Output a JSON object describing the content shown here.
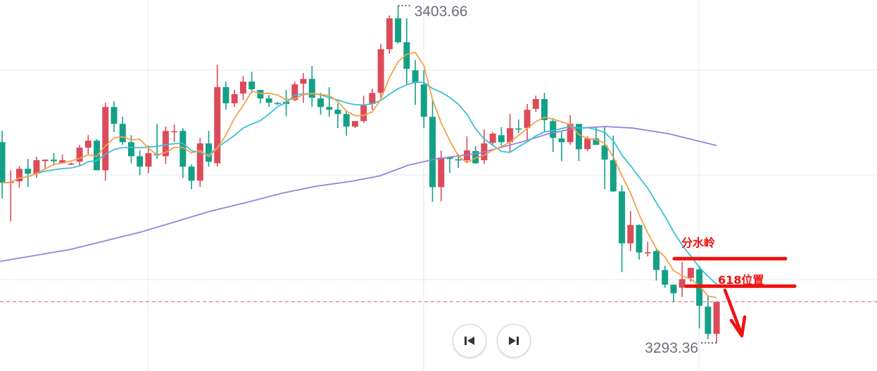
{
  "chart_data": {
    "type": "candlestick",
    "colors": {
      "up": "#dc4b5a",
      "down": "#14a087",
      "ma_short": "#f5a04a",
      "ma_mid": "#3bbfd6",
      "ma_long": "#9a80dc",
      "annotation": "#ee1111",
      "last_price_line": "#d9636e"
    },
    "ma_periods": [
      5,
      10
    ],
    "high_label": "3403.66",
    "low_label": "3293.36",
    "ohlc": [
      [
        3359.0,
        3362.7,
        3340.6,
        3345.7
      ],
      [
        3345.9,
        3349.8,
        3333.1,
        3346.0
      ],
      [
        3346.2,
        3351.2,
        3344.1,
        3350.3
      ],
      [
        3350.3,
        3353.5,
        3344.3,
        3348.7
      ],
      [
        3348.7,
        3354.2,
        3347.3,
        3353.1
      ],
      [
        3352.8,
        3353.3,
        3350.3,
        3353.3
      ],
      [
        3353.3,
        3355.4,
        3351.5,
        3352.8
      ],
      [
        3352.1,
        3354.9,
        3351.9,
        3353.1
      ],
      [
        3351.9,
        3352.4,
        3351.5,
        3352.0
      ],
      [
        3352.6,
        3358.1,
        3351.5,
        3357.2
      ],
      [
        3357.2,
        3361.3,
        3355.1,
        3359.5
      ],
      [
        3359.5,
        3360.0,
        3349.8,
        3349.8
      ],
      [
        3349.8,
        3371.9,
        3346.4,
        3370.5
      ],
      [
        3370.5,
        3372.4,
        3362.3,
        3365.0
      ],
      [
        3365.0,
        3367.3,
        3358.1,
        3359.0
      ],
      [
        3359.0,
        3361.3,
        3352.1,
        3354.4
      ],
      [
        3354.4,
        3356.3,
        3348.2,
        3351.0
      ],
      [
        3351.0,
        3357.9,
        3348.9,
        3355.4
      ],
      [
        3355.1,
        3365.0,
        3353.5,
        3354.7
      ],
      [
        3354.4,
        3364.1,
        3351.9,
        3362.7
      ],
      [
        3362.4,
        3364.8,
        3359.0,
        3362.6
      ],
      [
        3362.7,
        3363.6,
        3347.3,
        3351.0
      ],
      [
        3351.0,
        3351.7,
        3343.6,
        3346.4
      ],
      [
        3346.4,
        3360.4,
        3344.3,
        3358.6
      ],
      [
        3358.6,
        3362.7,
        3351.0,
        3352.6
      ],
      [
        3352.1,
        3384.3,
        3351.0,
        3377.0
      ],
      [
        3377.0,
        3378.8,
        3369.6,
        3371.7
      ],
      [
        3371.7,
        3376.1,
        3370.5,
        3374.7
      ],
      [
        3374.9,
        3380.7,
        3372.8,
        3378.8
      ],
      [
        3378.8,
        3382.0,
        3375.1,
        3376.3
      ],
      [
        3376.1,
        3376.1,
        3371.7,
        3373.3
      ],
      [
        3373.3,
        3374.4,
        3370.5,
        3371.9
      ],
      [
        3371.8,
        3372.2,
        3371.2,
        3371.7
      ],
      [
        3372.2,
        3376.1,
        3367.5,
        3371.5
      ],
      [
        3372.8,
        3378.8,
        3372.4,
        3377.9
      ],
      [
        3378.1,
        3381.6,
        3371.9,
        3379.7
      ],
      [
        3379.7,
        3383.9,
        3370.5,
        3373.5
      ],
      [
        3373.3,
        3375.1,
        3368.0,
        3370.5
      ],
      [
        3370.5,
        3377.0,
        3367.3,
        3369.6
      ],
      [
        3369.6,
        3371.7,
        3363.6,
        3368.2
      ],
      [
        3368.2,
        3369.4,
        3361.1,
        3364.1
      ],
      [
        3364.1,
        3365.9,
        3363.6,
        3365.9
      ],
      [
        3365.9,
        3374.2,
        3365.3,
        3371.0
      ],
      [
        3371.5,
        3376.5,
        3369.6,
        3375.1
      ],
      [
        3375.1,
        3391.2,
        3373.3,
        3389.4
      ],
      [
        3389.4,
        3400.4,
        3388.0,
        3399.5
      ],
      [
        3399.5,
        3403.66,
        3391.2,
        3391.7
      ],
      [
        3391.7,
        3399.5,
        3377.9,
        3383.0
      ],
      [
        3382.5,
        3385.9,
        3371.2,
        3378.4
      ],
      [
        3377.9,
        3382.5,
        3363.6,
        3367.3
      ],
      [
        3367.3,
        3372.8,
        3339.5,
        3344.3
      ],
      [
        3344.3,
        3356.3,
        3339.7,
        3354.0
      ],
      [
        3354.0,
        3354.4,
        3348.9,
        3353.5
      ],
      [
        3353.4,
        3355.1,
        3350.5,
        3353.2
      ],
      [
        3353.1,
        3360.9,
        3352.6,
        3356.3
      ],
      [
        3356.1,
        3357.7,
        3351.9,
        3352.1
      ],
      [
        3353.1,
        3363.2,
        3351.9,
        3358.6
      ],
      [
        3358.8,
        3362.3,
        3357.7,
        3361.8
      ],
      [
        3361.3,
        3363.9,
        3357.9,
        3359.0
      ],
      [
        3359.0,
        3368.2,
        3355.6,
        3363.6
      ],
      [
        3363.5,
        3366.4,
        3362.0,
        3363.3
      ],
      [
        3363.6,
        3371.5,
        3359.5,
        3369.6
      ],
      [
        3369.9,
        3374.2,
        3368.9,
        3373.1
      ],
      [
        3373.1,
        3375.1,
        3362.3,
        3366.2
      ],
      [
        3365.9,
        3366.9,
        3355.8,
        3360.4
      ],
      [
        3360.2,
        3362.3,
        3352.8,
        3359.0
      ],
      [
        3359.0,
        3367.8,
        3358.1,
        3365.0
      ],
      [
        3365.0,
        3365.0,
        3352.8,
        3356.7
      ],
      [
        3356.7,
        3360.9,
        3356.1,
        3360.2
      ],
      [
        3360.2,
        3363.9,
        3358.1,
        3358.1
      ],
      [
        3357.9,
        3363.9,
        3343.6,
        3353.3
      ],
      [
        3353.1,
        3361.1,
        3342.7,
        3342.9
      ],
      [
        3342.9,
        3344.8,
        3316.5,
        3325.9
      ],
      [
        3325.9,
        3336.5,
        3323.4,
        3331.9
      ],
      [
        3331.9,
        3332.1,
        3320.6,
        3322.9
      ],
      [
        3322.8,
        3326.4,
        3321.6,
        3323.0
      ],
      [
        3323.4,
        3323.9,
        3313.7,
        3317.2
      ],
      [
        3317.2,
        3318.6,
        3311.4,
        3312.4
      ],
      [
        3312.4,
        3312.4,
        3306.8,
        3309.6
      ],
      [
        3311.4,
        3319.9,
        3308.4,
        3314.2
      ],
      [
        3314.6,
        3317.9,
        3313.3,
        3317.9
      ],
      [
        3317.4,
        3318.6,
        3298.1,
        3305.5
      ],
      [
        3305.2,
        3308.9,
        3294.6,
        3296.3
      ],
      [
        3296.3,
        3306.8,
        3293.36,
        3306.8
      ]
    ],
    "ma_long_points": [
      [
        -0.3,
        3320.0
      ],
      [
        7.9,
        3323.9
      ],
      [
        16.1,
        3329.6
      ],
      [
        24.3,
        3336.5
      ],
      [
        28.4,
        3339.3
      ],
      [
        32.5,
        3342.3
      ],
      [
        36.5,
        3344.6
      ],
      [
        40.6,
        3346.2
      ],
      [
        43.9,
        3348.0
      ],
      [
        47.2,
        3351.5
      ],
      [
        50.4,
        3353.5
      ],
      [
        55.4,
        3355.4
      ],
      [
        60.3,
        3359.0
      ],
      [
        63.5,
        3361.8
      ],
      [
        66.8,
        3363.6
      ],
      [
        70.1,
        3364.1
      ],
      [
        73.3,
        3363.6
      ],
      [
        77.4,
        3361.8
      ],
      [
        83,
        3357.9
      ]
    ],
    "annotations": [
      {
        "text": "分水岭",
        "level": 3320.9
      },
      {
        "text": "618位置",
        "level": 3311.9
      }
    ],
    "grid": true
  },
  "controls": {
    "prev_icon": "skip-back-icon",
    "next_icon": "skip-forward-icon"
  }
}
